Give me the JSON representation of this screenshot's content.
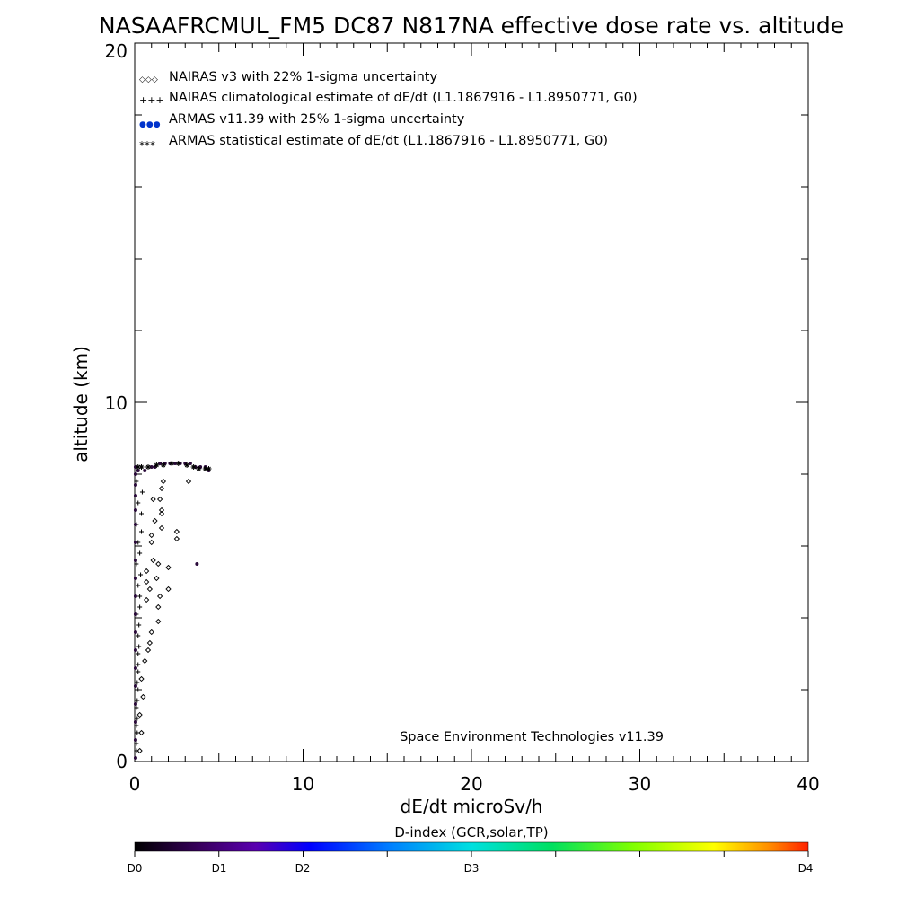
{
  "chart_data": {
    "type": "scatter",
    "title": "NASAAFRCMUL_FM5 DC87 N817NA effective dose rate vs. altitude",
    "xlabel": "dE/dt microSv/h",
    "ylabel": "altitude (km)",
    "xlim": [
      0,
      40
    ],
    "ylim": [
      0,
      20
    ],
    "x_ticks": [
      "0",
      "10",
      "20",
      "30",
      "40"
    ],
    "y_ticks": [
      "0",
      "10",
      "20"
    ],
    "credit": "Space Environment Technologies v11.39",
    "legend_position": "top-left",
    "legend": [
      {
        "symbol": "◇◇◇",
        "label": "NAIRAS v3 with 22% 1-sigma uncertainty"
      },
      {
        "symbol": "+++",
        "label": "NAIRAS climatological estimate of dE/dt (L1.1867916 - L1.8950771, G0)"
      },
      {
        "symbol": "●●●",
        "label": "ARMAS v11.39 with 25% 1-sigma uncertainty"
      },
      {
        "symbol": "***",
        "label": "ARMAS statistical estimate of dE/dt (L1.1867916 - L1.8950771, G0)"
      }
    ],
    "colorbar": {
      "title": "D-index (GCR,solar,TP)",
      "labels": [
        "D0",
        "D1",
        "D2",
        "D3",
        "D4"
      ],
      "label_positions": [
        0,
        0.125,
        0.25,
        0.5,
        1.0
      ]
    },
    "series": [
      {
        "marker": "diamond",
        "points": [
          [
            0.3,
            0.3
          ],
          [
            0.4,
            0.8
          ],
          [
            0.3,
            1.3
          ],
          [
            0.5,
            1.8
          ],
          [
            0.4,
            2.3
          ],
          [
            0.6,
            2.8
          ],
          [
            0.8,
            3.1
          ],
          [
            0.9,
            3.3
          ],
          [
            1.0,
            3.6
          ],
          [
            1.4,
            3.9
          ],
          [
            1.4,
            4.3
          ],
          [
            0.7,
            4.5
          ],
          [
            1.5,
            4.6
          ],
          [
            0.9,
            4.8
          ],
          [
            2.0,
            4.8
          ],
          [
            0.7,
            5.0
          ],
          [
            1.3,
            5.1
          ],
          [
            0.7,
            5.3
          ],
          [
            1.4,
            5.5
          ],
          [
            1.1,
            5.6
          ],
          [
            2.0,
            5.4
          ],
          [
            1.0,
            6.1
          ],
          [
            1.0,
            6.3
          ],
          [
            2.5,
            6.2
          ],
          [
            1.6,
            6.5
          ],
          [
            1.2,
            6.7
          ],
          [
            2.5,
            6.4
          ],
          [
            1.6,
            6.9
          ],
          [
            1.6,
            7.0
          ],
          [
            1.1,
            7.3
          ],
          [
            1.5,
            7.3
          ],
          [
            1.7,
            7.8
          ],
          [
            3.2,
            7.8
          ],
          [
            1.6,
            7.6
          ]
        ]
      },
      {
        "marker": "plus",
        "points": [
          [
            0.1,
            0.3
          ],
          [
            0.1,
            0.5
          ],
          [
            0.15,
            0.8
          ],
          [
            0.1,
            1.0
          ],
          [
            0.15,
            1.2
          ],
          [
            0.1,
            1.5
          ],
          [
            0.15,
            1.7
          ],
          [
            0.2,
            2.0
          ],
          [
            0.15,
            2.2
          ],
          [
            0.2,
            2.5
          ],
          [
            0.2,
            2.7
          ],
          [
            0.2,
            3.0
          ],
          [
            0.25,
            3.2
          ],
          [
            0.2,
            3.5
          ],
          [
            0.25,
            3.8
          ],
          [
            0.1,
            4.1
          ],
          [
            0.3,
            4.3
          ],
          [
            0.3,
            4.6
          ],
          [
            0.2,
            4.9
          ],
          [
            0.35,
            5.2
          ],
          [
            0.1,
            5.5
          ],
          [
            0.3,
            5.8
          ],
          [
            0.2,
            6.1
          ],
          [
            0.4,
            6.4
          ],
          [
            0.1,
            6.6
          ],
          [
            0.4,
            6.9
          ],
          [
            0.2,
            7.2
          ],
          [
            0.45,
            7.5
          ],
          [
            0.1,
            7.8
          ]
        ]
      },
      {
        "marker": "dot",
        "points": [
          [
            0.05,
            0.1
          ],
          [
            0.05,
            0.6
          ],
          [
            0.05,
            1.1
          ],
          [
            0.05,
            1.6
          ],
          [
            0.05,
            2.1
          ],
          [
            0.05,
            2.6
          ],
          [
            0.05,
            3.1
          ],
          [
            0.05,
            3.6
          ],
          [
            0.05,
            4.1
          ],
          [
            0.05,
            4.6
          ],
          [
            0.05,
            5.1
          ],
          [
            0.05,
            5.6
          ],
          [
            0.05,
            6.1
          ],
          [
            0.05,
            6.6
          ],
          [
            0.05,
            7.0
          ],
          [
            0.05,
            7.4
          ],
          [
            0.05,
            7.7
          ],
          [
            0.05,
            8.0
          ],
          [
            0.05,
            8.2
          ],
          [
            3.7,
            5.5
          ],
          [
            0.2,
            8.1
          ],
          [
            0.6,
            8.1
          ],
          [
            1.0,
            8.2
          ],
          [
            1.2,
            8.2
          ],
          [
            1.5,
            8.3
          ],
          [
            1.8,
            8.3
          ],
          [
            2.1,
            8.3
          ],
          [
            2.4,
            8.3
          ],
          [
            2.7,
            8.3
          ],
          [
            3.0,
            8.3
          ],
          [
            3.3,
            8.3
          ],
          [
            3.6,
            8.2
          ],
          [
            3.9,
            8.2
          ],
          [
            4.2,
            8.2
          ],
          [
            4.4,
            8.1
          ]
        ]
      },
      {
        "marker": "asterisk",
        "points": [
          [
            0.4,
            8.2
          ],
          [
            0.8,
            8.2
          ],
          [
            1.3,
            8.25
          ],
          [
            1.7,
            8.25
          ],
          [
            2.2,
            8.3
          ],
          [
            2.6,
            8.3
          ],
          [
            3.1,
            8.25
          ],
          [
            3.5,
            8.2
          ],
          [
            3.8,
            8.15
          ],
          [
            4.2,
            8.15
          ],
          [
            0.2,
            8.2
          ],
          [
            4.4,
            8.15
          ]
        ]
      }
    ]
  }
}
